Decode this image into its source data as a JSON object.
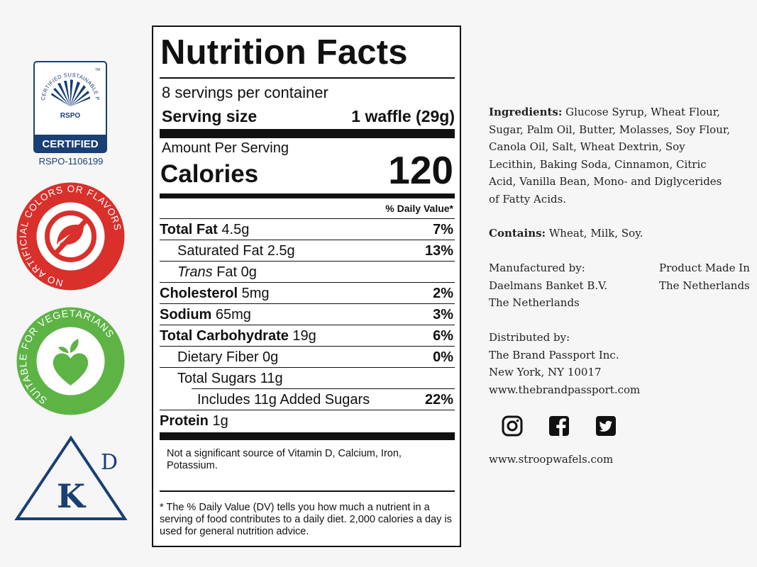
{
  "badges": {
    "rspo": {
      "arc_text": "CERTIFIED SUSTAINABLE PALM OIL",
      "tm": "TM",
      "mark": "RSPO",
      "certified": "CERTIFIED",
      "code": "RSPO-1106199",
      "color": "#1a3f75"
    },
    "no_artificial": {
      "text": "NO ARTIFICIAL COLORS OR FLAVORS",
      "color": "#d9302c"
    },
    "vegetarian": {
      "text": "SUITABLE FOR VEGETARIANS",
      "color": "#5db445"
    },
    "kosher": {
      "letter": "K",
      "superscript": "D",
      "color": "#1a3f75"
    }
  },
  "nutrition": {
    "title": "Nutrition Facts",
    "servings": "8 servings per container",
    "serving_size_label": "Serving size",
    "serving_size_value": "1 waffle (29g)",
    "amount_per_serving": "Amount Per Serving",
    "calories_label": "Calories",
    "calories_value": "120",
    "daily_value_header": "% Daily Value*",
    "rows": [
      {
        "name": "Total Fat",
        "amount": " 4.5g",
        "dv": "7%"
      },
      {
        "name": "Saturated Fat 2.5g",
        "dv": "13%"
      },
      {
        "name_italic": "Trans",
        "name": " Fat 0g",
        "dv": ""
      },
      {
        "name": "Cholesterol",
        "amount": " 5mg",
        "dv": "2%"
      },
      {
        "name": "Sodium",
        "amount": " 65mg",
        "dv": "3%"
      },
      {
        "name": "Total Carbohydrate",
        "amount": " 19g",
        "dv": "6%"
      },
      {
        "name": "Dietary Fiber 0g",
        "dv": "0%"
      },
      {
        "name": "Total Sugars 11g",
        "dv": ""
      },
      {
        "name": "Includes 11g Added Sugars",
        "dv": "22%"
      },
      {
        "name": "Protein",
        "amount": " 1g",
        "dv": ""
      }
    ],
    "vitamin_note": "Not a significant source of Vitamin D, Calcium, Iron, Potassium.",
    "footnote": "* The % Daily Value (DV) tells you how much a nutrient in a serving of food contributes to a daily diet. 2,000 calories a day is used for general nutrition advice."
  },
  "info": {
    "ingredients_label": "Ingredients:",
    "ingredients_lines": [
      " Glucose Syrup, Wheat Flour,",
      "Sugar, Palm Oil, Butter, Molasses, Soy Flour,",
      "Canola Oil, Salt, Wheat Dextrin,  Soy",
      "Lecithin, Baking Soda, Cinnamon, Citric",
      "Acid, Vanilla Bean, Mono- and Diglycerides",
      "of Fatty Acids."
    ],
    "contains_label": "Contains:",
    "contains_text": " Wheat, Milk, Soy.",
    "manufacturer_lines": [
      "Manufactured by:",
      "Daelmans Banket B.V.",
      "The Netherlands"
    ],
    "origin_lines": [
      "Product Made In",
      "The Netherlands"
    ],
    "distributor_lines": [
      "Distributed by:",
      "The Brand Passport Inc.",
      "New York, NY 10017",
      "www.thebrandpassport.com"
    ],
    "social_icons": [
      "instagram-icon",
      "facebook-icon",
      "twitter-icon"
    ],
    "website": "www.stroopwafels.com"
  }
}
